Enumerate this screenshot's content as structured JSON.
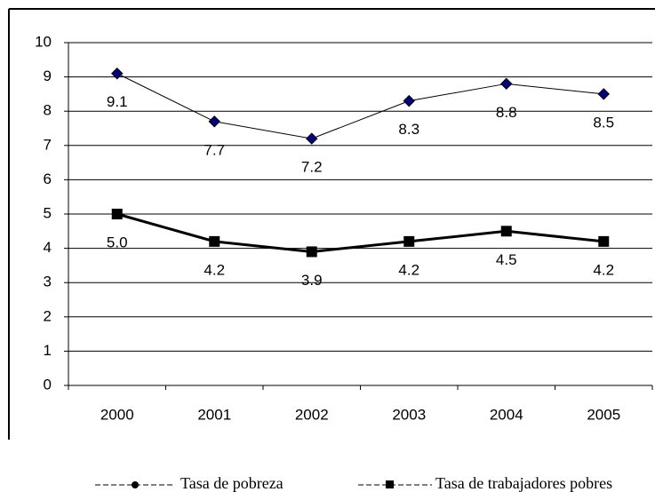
{
  "chart_data": {
    "type": "line",
    "categories": [
      "2000",
      "2001",
      "2002",
      "2003",
      "2004",
      "2005"
    ],
    "series": [
      {
        "name": "Tasa de pobreza",
        "color": "#000080",
        "values": [
          9.1,
          7.7,
          7.2,
          8.3,
          8.8,
          8.5
        ]
      },
      {
        "name": "Tasa de trabajadores pobres",
        "color": "#000000",
        "values": [
          5.0,
          4.2,
          3.9,
          4.2,
          4.5,
          4.2
        ],
        "value_labels": [
          "5.0",
          "4.2",
          "3.9",
          "4.2",
          "4.5",
          "4.2"
        ]
      }
    ],
    "ylim": [
      0,
      10
    ],
    "yticks": [
      0,
      1,
      2,
      3,
      4,
      5,
      6,
      7,
      8,
      9,
      10
    ],
    "grid": true
  }
}
